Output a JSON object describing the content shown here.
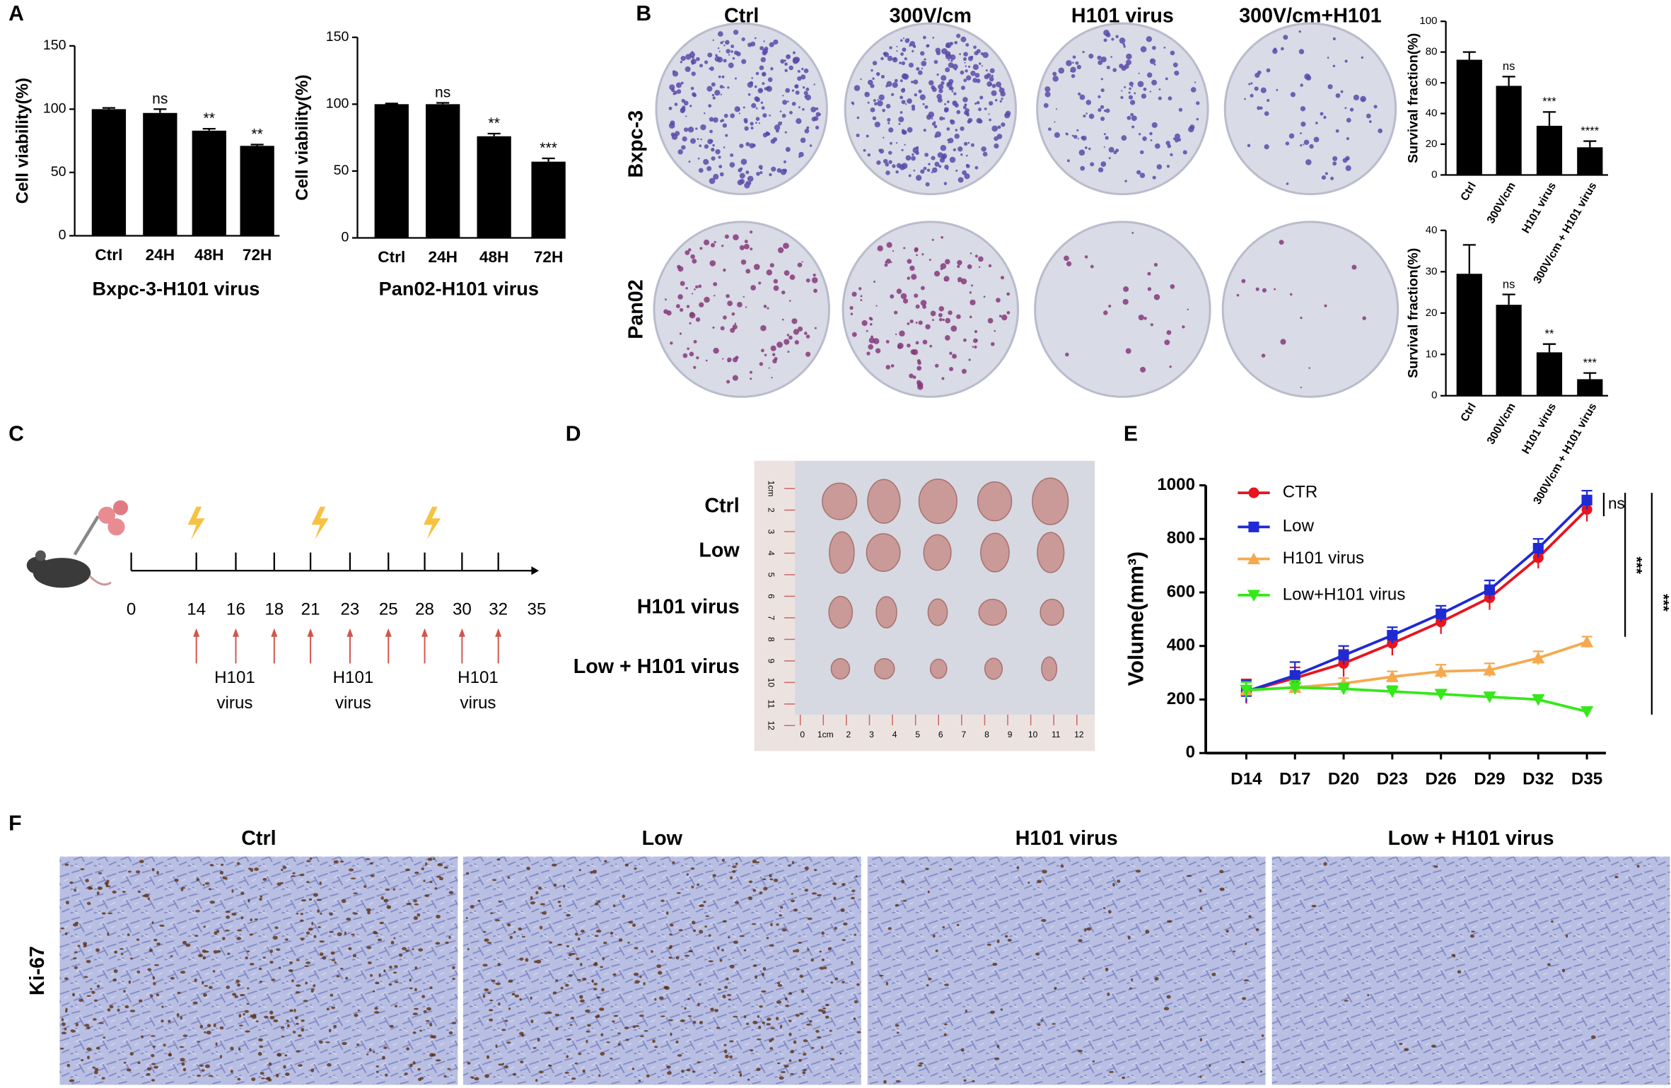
{
  "panels": {
    "labels": [
      "A",
      "B",
      "C",
      "D",
      "E",
      "F"
    ]
  },
  "chart_data": [
    {
      "type": "bar",
      "categories": [
        "Ctrl",
        "24H",
        "48H",
        "72H"
      ],
      "values": [
        100,
        97,
        83,
        71
      ],
      "errors": [
        1,
        3,
        1.5,
        1
      ],
      "sig_labels": [
        null,
        "ns",
        "**",
        "**"
      ],
      "ylim": [
        0,
        150
      ],
      "yticks": [
        0,
        50,
        100,
        150
      ],
      "ylabel": "Cell viability(%)",
      "xlabel": "Bxpc-3-H101 virus",
      "color": "#000000"
    },
    {
      "type": "bar",
      "categories": [
        "Ctrl",
        "24H",
        "48H",
        "72H"
      ],
      "values": [
        100,
        100,
        76,
        57
      ],
      "errors": [
        0.5,
        1,
        2,
        2.5
      ],
      "sig_labels": [
        null,
        "ns",
        "**",
        "***"
      ],
      "ylim": [
        0,
        150
      ],
      "yticks": [
        0,
        50,
        100,
        150
      ],
      "ylabel": "Cell viability(%)",
      "xlabel": "Pan02-H101 virus",
      "color": "#000000"
    },
    {
      "type": "bar",
      "categories": [
        "Ctrl",
        "300V/cm",
        "H101 virus",
        "300V/cm + H101 virus"
      ],
      "values": [
        75,
        58,
        32,
        18
      ],
      "errors": [
        5,
        6,
        9,
        4
      ],
      "sig_labels": [
        null,
        "ns",
        "***",
        "****"
      ],
      "ylim": [
        0,
        100
      ],
      "yticks": [
        0,
        20,
        40,
        60,
        80,
        100
      ],
      "ylabel": "Survival fraction(%)",
      "color": "#000000"
    },
    {
      "type": "bar",
      "categories": [
        "Ctrl",
        "300V/cm",
        "H101 virus",
        "300V/cm + H101 virus"
      ],
      "values": [
        29.5,
        22,
        10.5,
        4
      ],
      "errors": [
        7,
        2.5,
        2,
        1.5
      ],
      "sig_labels": [
        null,
        "ns",
        "**",
        "***"
      ],
      "ylim": [
        0,
        40
      ],
      "yticks": [
        0,
        10,
        20,
        30,
        40
      ],
      "ylabel": "Survival fraction(%)",
      "color": "#000000"
    },
    {
      "type": "line",
      "categories": [
        "D14",
        "D17",
        "D20",
        "D23",
        "D26",
        "D29",
        "D32",
        "D35"
      ],
      "ylim": [
        0,
        1000
      ],
      "yticks": [
        0,
        200,
        400,
        600,
        800,
        1000
      ],
      "ylabel": "Volume(mm³)",
      "series": [
        {
          "name": "CTR",
          "color": "#e8141e",
          "marker": "circle",
          "values": [
            230,
            280,
            335,
            410,
            490,
            580,
            730,
            910
          ],
          "errors": [
            45,
            40,
            50,
            45,
            45,
            45,
            40,
            45
          ]
        },
        {
          "name": "Low",
          "color": "#1f2ad4",
          "marker": "square",
          "values": [
            230,
            290,
            365,
            440,
            520,
            610,
            765,
            945
          ],
          "errors": [
            40,
            50,
            35,
            30,
            30,
            35,
            35,
            35
          ]
        },
        {
          "name": "H101 virus",
          "color": "#f5a94f",
          "marker": "triangle-up",
          "values": [
            235,
            245,
            260,
            285,
            305,
            310,
            355,
            415
          ],
          "errors": [
            30,
            25,
            20,
            20,
            25,
            25,
            25,
            20
          ]
        },
        {
          "name": "Low+H101 virus",
          "color": "#35e81a",
          "marker": "triangle-down",
          "values": [
            235,
            245,
            240,
            230,
            220,
            210,
            200,
            155
          ],
          "errors": [
            30,
            25,
            20,
            20,
            15,
            15,
            15,
            15
          ]
        }
      ],
      "annotations": [
        "ns",
        "***",
        "***"
      ]
    }
  ],
  "colony_assay": {
    "columns": [
      "Ctrl",
      "300V/cm",
      "H101 virus",
      "300V/cm+H101"
    ],
    "rows": [
      "Bxpc-3",
      "Pan02"
    ]
  },
  "timeline": {
    "days": [
      0,
      14,
      16,
      18,
      21,
      23,
      25,
      28,
      30,
      32,
      35
    ],
    "injection_label_lines": [
      [
        "H101",
        "virus"
      ],
      [
        "H101",
        "virus"
      ],
      [
        "H101",
        "virus"
      ]
    ]
  },
  "tumor_photo": {
    "rows": [
      "Ctrl",
      "Low",
      "H101 virus",
      "Low + H101 virus"
    ],
    "ruler_h": [
      "0",
      "1cm",
      "2",
      "3",
      "4",
      "5",
      "6",
      "7",
      "8",
      "9",
      "10",
      "11",
      "12"
    ],
    "ruler_v": [
      "1cm",
      "2",
      "3",
      "4",
      "5",
      "6",
      "7",
      "8",
      "9",
      "10",
      "11",
      "12"
    ]
  },
  "ihc": {
    "columns": [
      "Ctrl",
      "Low",
      "H101 virus",
      "Low + H101 virus"
    ],
    "row": "Ki-67"
  }
}
